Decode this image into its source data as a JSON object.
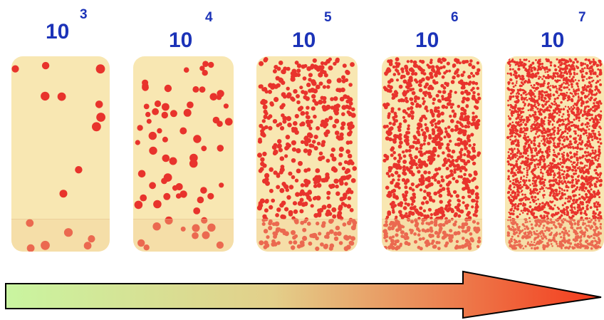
{
  "panels": [
    {
      "base": "10",
      "exponent": "3",
      "density_exponent": 3
    },
    {
      "base": "10",
      "exponent": "4",
      "density_exponent": 4
    },
    {
      "base": "10",
      "exponent": "5",
      "density_exponent": 5
    },
    {
      "base": "10",
      "exponent": "6",
      "density_exponent": 6
    },
    {
      "base": "10",
      "exponent": "7",
      "density_exponent": 7
    }
  ],
  "colors": {
    "label": "#1c33b8",
    "strip_background": "#f8e7b2",
    "dot": "#e8332c",
    "arrow_start": "#c9f5a0",
    "arrow_end": "#f43a1c",
    "arrow_outline": "#000000"
  }
}
